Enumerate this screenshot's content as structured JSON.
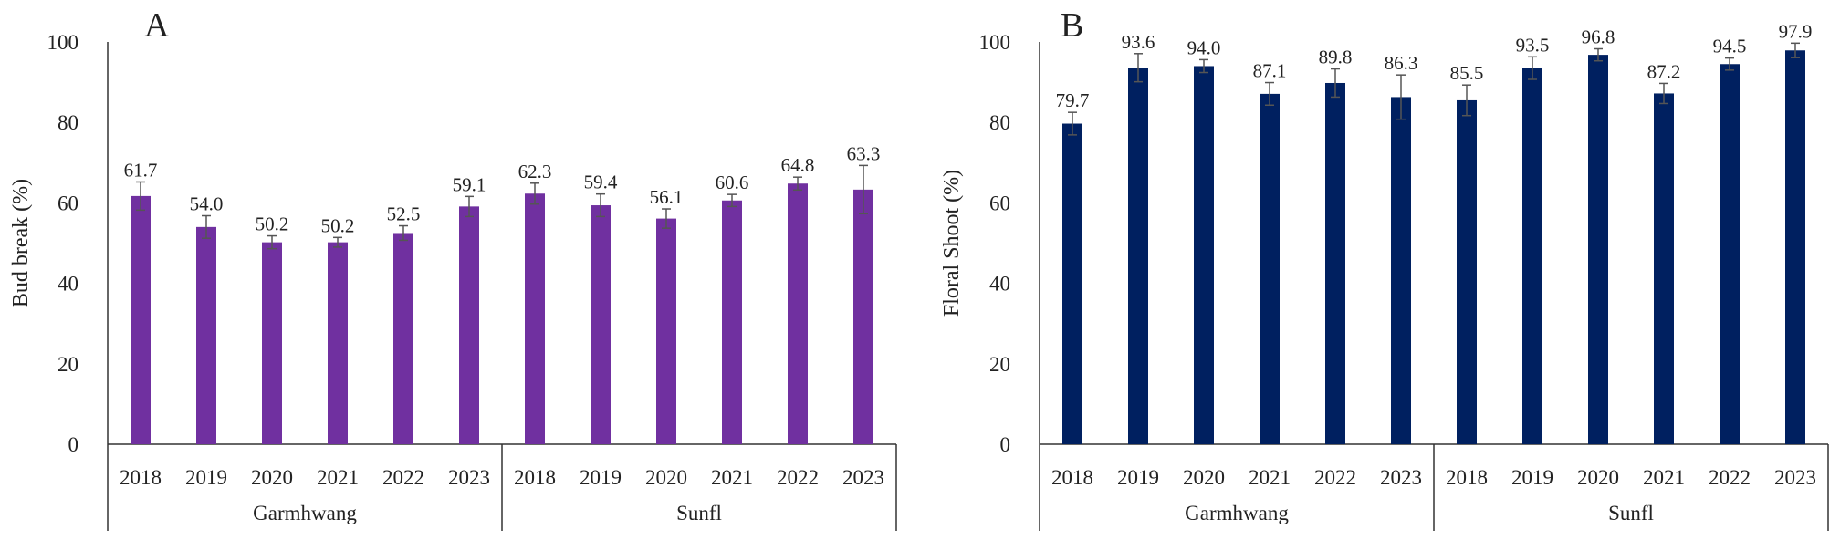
{
  "chart_data": [
    {
      "type": "bar",
      "panel_label": "A",
      "ylabel": "Bud break (%)",
      "ylim": [
        0,
        100
      ],
      "yticks": [
        0,
        20,
        40,
        60,
        80,
        100
      ],
      "grid": false,
      "color": "#7030a0",
      "groups": [
        {
          "name": "Garmhwang",
          "categories": [
            "2018",
            "2019",
            "2020",
            "2021",
            "2022",
            "2023"
          ],
          "values": [
            61.7,
            54.0,
            50.2,
            50.2,
            52.5,
            59.1
          ],
          "labels": [
            "61.7",
            "54.0",
            "50.2",
            "50.2",
            "52.5",
            "59.1"
          ],
          "errors": [
            3.5,
            2.8,
            1.6,
            1.2,
            1.8,
            2.5
          ]
        },
        {
          "name": "Sunfl",
          "categories": [
            "2018",
            "2019",
            "2020",
            "2021",
            "2022",
            "2023"
          ],
          "values": [
            62.3,
            59.4,
            56.1,
            60.6,
            64.8,
            63.3
          ],
          "labels": [
            "62.3",
            "59.4",
            "56.1",
            "60.6",
            "64.8",
            "63.3"
          ],
          "errors": [
            2.6,
            2.8,
            2.4,
            1.5,
            1.6,
            6.0
          ]
        }
      ]
    },
    {
      "type": "bar",
      "panel_label": "B",
      "ylabel": "Floral Shoot (%)",
      "ylim": [
        0,
        100
      ],
      "yticks": [
        0,
        20,
        40,
        60,
        80,
        100
      ],
      "grid": false,
      "color": "#002060",
      "groups": [
        {
          "name": "Garmhwang",
          "categories": [
            "2018",
            "2019",
            "2020",
            "2021",
            "2022",
            "2023"
          ],
          "values": [
            79.7,
            93.6,
            94.0,
            87.1,
            89.8,
            86.3
          ],
          "labels": [
            "79.7",
            "93.6",
            "94.0",
            "87.1",
            "89.8",
            "86.3"
          ],
          "errors": [
            2.8,
            3.5,
            1.6,
            2.8,
            3.5,
            5.5
          ]
        },
        {
          "name": "Sunfl",
          "categories": [
            "2018",
            "2019",
            "2020",
            "2021",
            "2022",
            "2023"
          ],
          "values": [
            85.5,
            93.5,
            96.8,
            87.2,
            94.5,
            97.9
          ],
          "labels": [
            "85.5",
            "93.5",
            "96.8",
            "87.2",
            "94.5",
            "97.9"
          ],
          "errors": [
            3.8,
            2.8,
            1.5,
            2.5,
            1.5,
            1.8
          ]
        }
      ]
    }
  ]
}
